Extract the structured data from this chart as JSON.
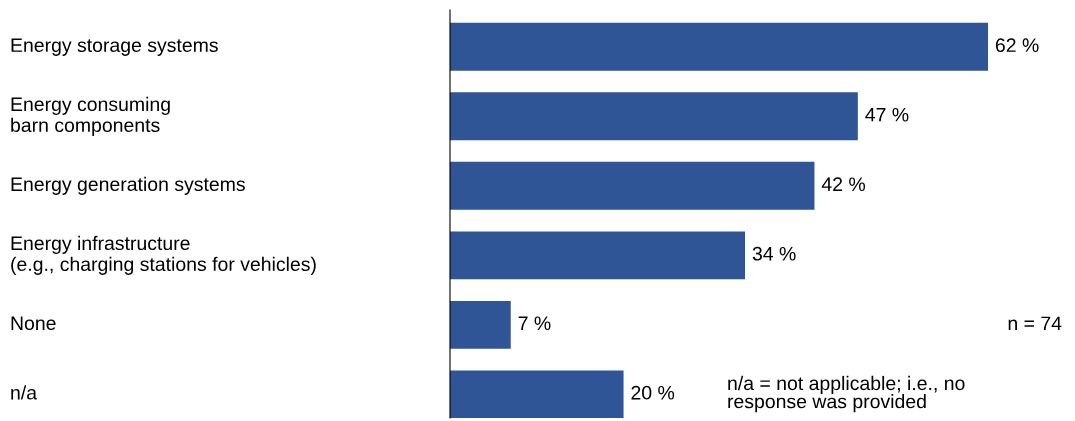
{
  "chart_data": {
    "type": "bar",
    "orientation": "horizontal",
    "categories": [
      "Energy storage systems",
      "Energy consuming\nbarn components",
      "Energy generation systems",
      "Energy infrastructure\n(e.g., charging stations for vehicles)",
      "None",
      "n/a"
    ],
    "values": [
      62,
      47,
      42,
      34,
      7,
      20
    ],
    "value_labels": [
      "62 %",
      "47 %",
      "42 %",
      "34 %",
      "7 %",
      "20 %"
    ],
    "color": "#2f5597",
    "tick_labels": false,
    "grid": false,
    "legend": false,
    "annotations": [
      "n = 74",
      "n/a = not applicable; i.e., no\nresponse was provided"
    ]
  }
}
